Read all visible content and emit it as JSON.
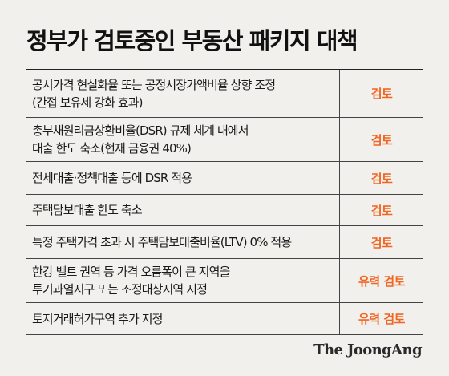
{
  "title": "정부가 검토중인 부동산 패키지 대책",
  "rows": [
    {
      "lines": [
        "공시가격 현실화율 또는 공정시장가액비율 상향 조정",
        "(간접 보유세 강화 효과)"
      ],
      "status": "검토"
    },
    {
      "lines": [
        "총부채원리금상환비율(DSR) 규제 체계 내에서",
        "대출 한도 축소(현재 금융권 40%)"
      ],
      "status": "검토"
    },
    {
      "lines": [
        "전세대출·정책대출 등에 DSR 적용"
      ],
      "status": "검토"
    },
    {
      "lines": [
        "주택담보대출 한도 축소"
      ],
      "status": "검토"
    },
    {
      "lines": [
        "특정 주택가격 초과 시 주택담보대출비율(LTV) 0% 적용"
      ],
      "status": "검토"
    },
    {
      "lines": [
        "한강 벨트 권역 등 가격 오름폭이 큰 지역을",
        "투기과열지구 또는 조정대상지역 지정"
      ],
      "status": "유력 검토"
    },
    {
      "lines": [
        "토지거래허가구역 추가 지정"
      ],
      "status": "유력 검토"
    }
  ],
  "source": "The JoongAng",
  "colors": {
    "status": "#f26522",
    "background": "#f1f0ec",
    "rule": "#444444"
  }
}
